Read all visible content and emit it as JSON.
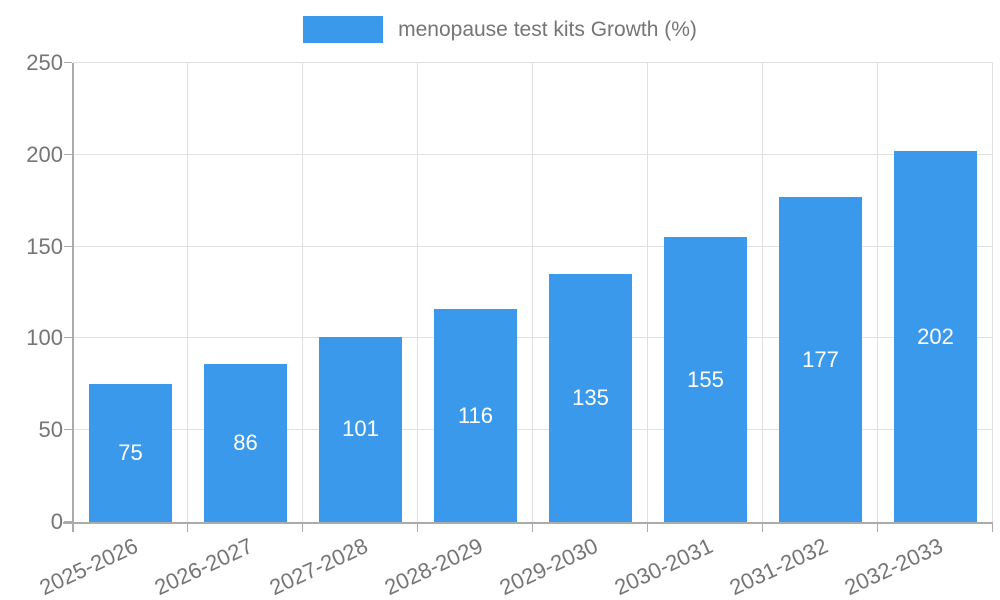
{
  "chart_data": {
    "type": "bar",
    "title": "",
    "legend": "menopause test kits Growth (%)",
    "legend_position": "top-center",
    "categories": [
      "2025-2026",
      "2026-2027",
      "2027-2028",
      "2028-2029",
      "2029-2030",
      "2030-2031",
      "2031-2032",
      "2032-2033"
    ],
    "values": [
      75,
      86,
      101,
      116,
      135,
      155,
      177,
      202
    ],
    "xlabel": "",
    "ylabel": "",
    "ylim": [
      0,
      250
    ],
    "yticks": [
      0,
      50,
      100,
      150,
      200,
      250
    ],
    "grid": "on",
    "bar_color": "#3B99EC",
    "value_label_color": "#FFFFFF",
    "text_color": "#757575",
    "grid_color": "#E0E0E0",
    "axis_color": "#ABABAB"
  }
}
